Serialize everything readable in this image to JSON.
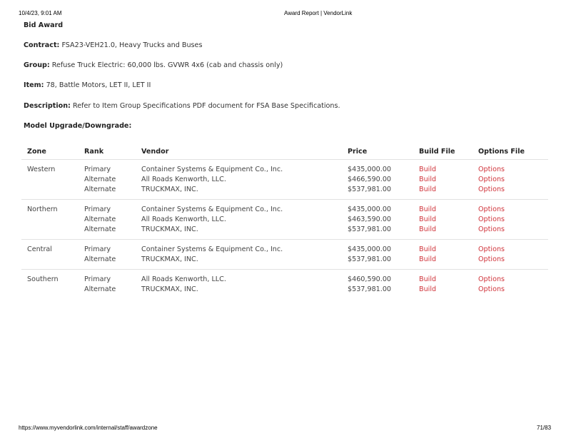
{
  "print_header": {
    "datetime": "10/4/23, 9:01 AM",
    "title": "Award Report | VendorLink"
  },
  "print_footer": {
    "url": "https://www.myvendorlink.com/internal/staff/awardzone",
    "page": "71/83"
  },
  "heading": "Bid Award",
  "fields": {
    "contract": {
      "label": "Contract:",
      "value": "FSA23-VEH21.0, Heavy Trucks and Buses"
    },
    "group": {
      "label": "Group:",
      "value": "Refuse Truck Electric: 60,000 lbs. GVWR 4x6 (cab and chassis only)"
    },
    "item": {
      "label": "Item:",
      "value": "78, Battle Motors, LET II, LET II"
    },
    "description": {
      "label": "Description:",
      "value": "Refer to Item Group Specifications PDF document for FSA Base Specifications."
    },
    "model_upgrade": {
      "label": "Model Upgrade/Downgrade:",
      "value": ""
    }
  },
  "table": {
    "headers": [
      "Zone",
      "Rank",
      "Vendor",
      "Price",
      "Build File",
      "Options File"
    ],
    "link_color": "#d0343b",
    "zones": [
      {
        "zone": "Western",
        "entries": [
          {
            "rank": "Primary",
            "vendor": "Container Systems & Equipment Co., Inc.",
            "price": "$435,000.00",
            "build": "Build",
            "options": "Options"
          },
          {
            "rank": "Alternate",
            "vendor": "All Roads Kenworth, LLC.",
            "price": "$466,590.00",
            "build": "Build",
            "options": "Options"
          },
          {
            "rank": "Alternate",
            "vendor": "TRUCKMAX, INC.",
            "price": "$537,981.00",
            "build": "Build",
            "options": "Options"
          }
        ]
      },
      {
        "zone": "Northern",
        "entries": [
          {
            "rank": "Primary",
            "vendor": "Container Systems & Equipment Co., Inc.",
            "price": "$435,000.00",
            "build": "Build",
            "options": "Options"
          },
          {
            "rank": "Alternate",
            "vendor": "All Roads Kenworth, LLC.",
            "price": "$463,590.00",
            "build": "Build",
            "options": "Options"
          },
          {
            "rank": "Alternate",
            "vendor": "TRUCKMAX, INC.",
            "price": "$537,981.00",
            "build": "Build",
            "options": "Options"
          }
        ]
      },
      {
        "zone": "Central",
        "entries": [
          {
            "rank": "Primary",
            "vendor": "Container Systems & Equipment Co., Inc.",
            "price": "$435,000.00",
            "build": "Build",
            "options": "Options"
          },
          {
            "rank": "Alternate",
            "vendor": "TRUCKMAX, INC.",
            "price": "$537,981.00",
            "build": "Build",
            "options": "Options"
          }
        ]
      },
      {
        "zone": "Southern",
        "entries": [
          {
            "rank": "Primary",
            "vendor": "All Roads Kenworth, LLC.",
            "price": "$460,590.00",
            "build": "Build",
            "options": "Options"
          },
          {
            "rank": "Alternate",
            "vendor": "TRUCKMAX, INC.",
            "price": "$537,981.00",
            "build": "Build",
            "options": "Options"
          }
        ]
      }
    ]
  }
}
